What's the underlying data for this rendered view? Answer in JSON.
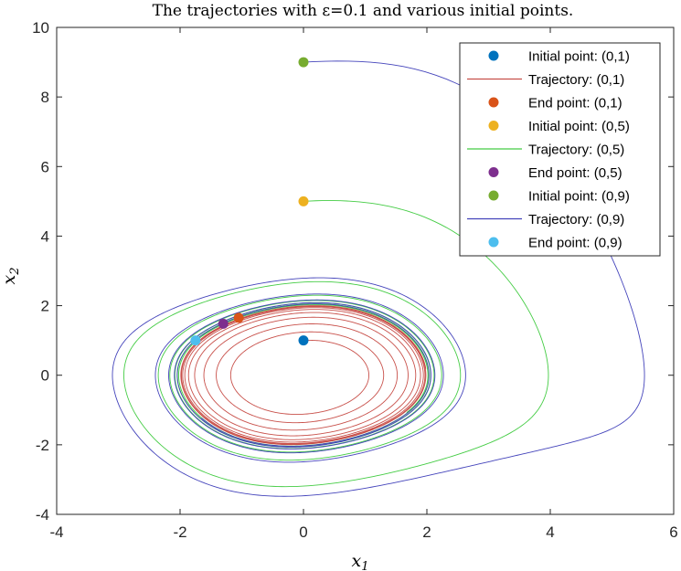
{
  "chart_data": {
    "type": "line",
    "title": "The trajectories with ε=0.1 and various initial points.",
    "xlabel": "x",
    "xlabel_sub": "1",
    "ylabel": "x",
    "ylabel_sub": "2",
    "xlim": [
      -4,
      6
    ],
    "ylim": [
      -4,
      10
    ],
    "xticks": [
      -4,
      -2,
      0,
      2,
      4,
      6
    ],
    "yticks": [
      -4,
      -2,
      0,
      2,
      4,
      6,
      8,
      10
    ],
    "grid": false,
    "legend_position": "top-right",
    "epsilon": 0.1,
    "limit_cycle": {
      "ax": 2.0,
      "ay": 2.0
    },
    "series": [
      {
        "name": "Initial point: (0,1)",
        "kind": "point",
        "color": "#0072BD",
        "points": [
          [
            0,
            1
          ]
        ]
      },
      {
        "name": "Trajectory: (0,1)",
        "kind": "line",
        "color": "#D95319",
        "stroke": "#C8504A",
        "start": [
          0,
          1
        ],
        "end": [
          -1.05,
          1.65
        ]
      },
      {
        "name": "End point: (0,1)",
        "kind": "point",
        "color": "#D95319",
        "points": [
          [
            -1.05,
            1.65
          ]
        ]
      },
      {
        "name": "Initial point: (0,5)",
        "kind": "point",
        "color": "#EDB120",
        "points": [
          [
            0,
            5
          ]
        ]
      },
      {
        "name": "Trajectory: (0,5)",
        "kind": "line",
        "color": "#44CC44",
        "stroke": "#44CC44",
        "start": [
          0,
          5
        ],
        "end": [
          -1.3,
          1.48
        ]
      },
      {
        "name": "End point: (0,5)",
        "kind": "point",
        "color": "#7E2F8E",
        "points": [
          [
            -1.3,
            1.48
          ]
        ]
      },
      {
        "name": "Initial point: (0,9)",
        "kind": "point",
        "color": "#77AC30",
        "points": [
          [
            0,
            9
          ]
        ]
      },
      {
        "name": "Trajectory: (0,9)",
        "kind": "line",
        "color": "#4444BB",
        "stroke": "#4444BB",
        "start": [
          0,
          9
        ],
        "end": [
          -1.75,
          1.0
        ]
      },
      {
        "name": "End point: (0,9)",
        "kind": "point",
        "color": "#4DBEEE",
        "points": [
          [
            -1.75,
            1.0
          ]
        ]
      }
    ]
  }
}
